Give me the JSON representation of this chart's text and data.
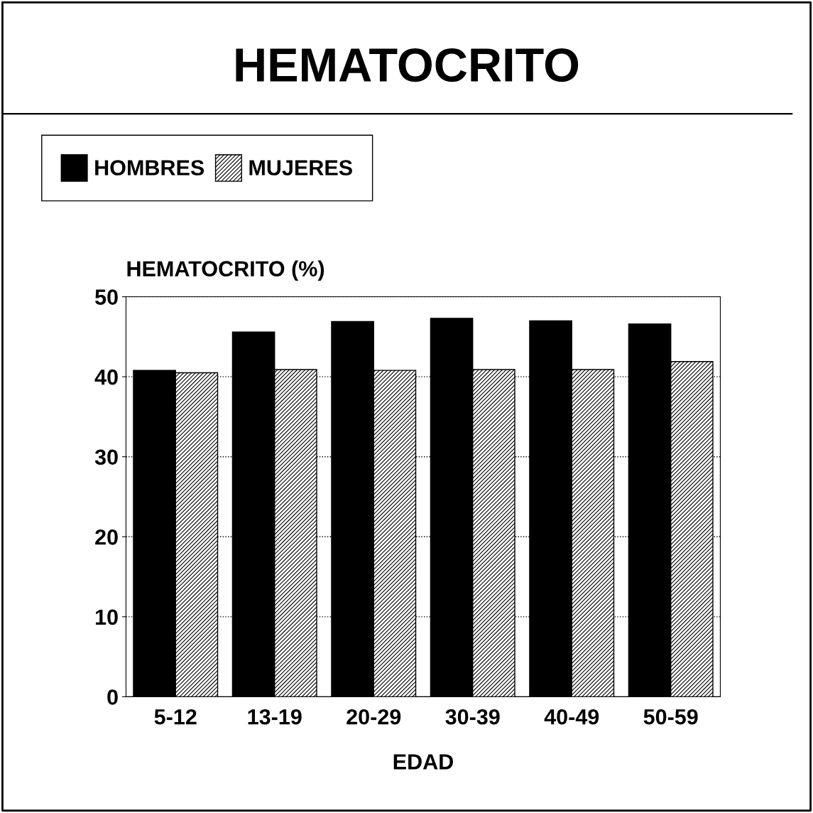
{
  "chart_data": {
    "type": "bar",
    "title": "HEMATOCRITO",
    "ylabel": "HEMATOCRITO (%)",
    "xlabel": "EDAD",
    "categories": [
      "5-12",
      "13-19",
      "20-29",
      "30-39",
      "40-49",
      "50-59"
    ],
    "series": [
      {
        "name": "HOMBRES",
        "color": "#000000",
        "values": [
          40.8,
          45.6,
          46.9,
          47.3,
          47.0,
          46.6
        ]
      },
      {
        "name": "MUJERES",
        "color": "#000000",
        "values": [
          40.5,
          40.9,
          40.8,
          40.9,
          40.9,
          41.9
        ]
      }
    ],
    "ylim": [
      0,
      50
    ],
    "yticks": [
      0,
      10,
      20,
      30,
      40,
      50
    ],
    "grid": "y",
    "legend": "top left"
  }
}
